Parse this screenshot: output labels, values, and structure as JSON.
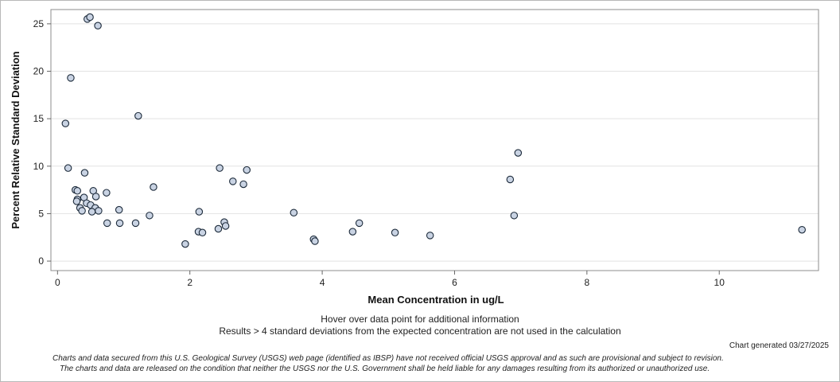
{
  "chart_data": {
    "type": "scatter",
    "xlabel": "Mean Concentration in ug/L",
    "ylabel": "Percent Relative Standard Deviation",
    "xlim": [
      -0.1,
      11.5
    ],
    "ylim": [
      -1,
      26.5
    ],
    "xticks": [
      0,
      2,
      4,
      6,
      8,
      10
    ],
    "yticks": [
      0,
      5,
      10,
      15,
      20,
      25
    ],
    "grid": "horizontal",
    "marker_color": "#c9d3e3",
    "marker_edge_color": "#1c2a3a",
    "points": [
      {
        "x": 0.45,
        "y": 25.5
      },
      {
        "x": 0.49,
        "y": 25.7
      },
      {
        "x": 0.61,
        "y": 24.8
      },
      {
        "x": 0.2,
        "y": 19.3
      },
      {
        "x": 0.12,
        "y": 14.5
      },
      {
        "x": 1.22,
        "y": 15.3
      },
      {
        "x": 0.16,
        "y": 9.8
      },
      {
        "x": 0.41,
        "y": 9.3
      },
      {
        "x": 0.27,
        "y": 7.5
      },
      {
        "x": 0.3,
        "y": 7.4
      },
      {
        "x": 0.54,
        "y": 7.4
      },
      {
        "x": 0.74,
        "y": 7.2
      },
      {
        "x": 0.4,
        "y": 6.7
      },
      {
        "x": 0.58,
        "y": 6.8
      },
      {
        "x": 0.3,
        "y": 6.5
      },
      {
        "x": 0.29,
        "y": 6.3
      },
      {
        "x": 0.44,
        "y": 6.1
      },
      {
        "x": 0.5,
        "y": 5.9
      },
      {
        "x": 0.57,
        "y": 5.6
      },
      {
        "x": 0.34,
        "y": 5.6
      },
      {
        "x": 0.37,
        "y": 5.3
      },
      {
        "x": 0.52,
        "y": 5.2
      },
      {
        "x": 0.62,
        "y": 5.3
      },
      {
        "x": 0.93,
        "y": 5.4
      },
      {
        "x": 0.75,
        "y": 4.0
      },
      {
        "x": 0.94,
        "y": 4.0
      },
      {
        "x": 1.18,
        "y": 4.0
      },
      {
        "x": 1.39,
        "y": 4.8
      },
      {
        "x": 1.45,
        "y": 7.8
      },
      {
        "x": 1.93,
        "y": 1.8
      },
      {
        "x": 2.13,
        "y": 3.1
      },
      {
        "x": 2.14,
        "y": 5.2
      },
      {
        "x": 2.19,
        "y": 3.0
      },
      {
        "x": 2.43,
        "y": 3.4
      },
      {
        "x": 2.45,
        "y": 9.8
      },
      {
        "x": 2.52,
        "y": 4.1
      },
      {
        "x": 2.54,
        "y": 3.7
      },
      {
        "x": 2.65,
        "y": 8.4
      },
      {
        "x": 2.81,
        "y": 8.1
      },
      {
        "x": 2.86,
        "y": 9.6
      },
      {
        "x": 3.57,
        "y": 5.1
      },
      {
        "x": 3.87,
        "y": 2.3
      },
      {
        "x": 3.89,
        "y": 2.1
      },
      {
        "x": 4.46,
        "y": 3.1
      },
      {
        "x": 4.56,
        "y": 4.0
      },
      {
        "x": 5.1,
        "y": 3.0
      },
      {
        "x": 5.63,
        "y": 2.7
      },
      {
        "x": 6.84,
        "y": 8.6
      },
      {
        "x": 6.9,
        "y": 4.8
      },
      {
        "x": 6.96,
        "y": 11.4
      },
      {
        "x": 11.25,
        "y": 3.3
      }
    ]
  },
  "notes": {
    "hover": "Hover over data point for additional information",
    "exclusion": "Results > 4 standard deviations from the expected concentration are not used in the calculation",
    "generated": "Chart generated 03/27/2025",
    "disclaimer_line1": "Charts and data secured from this U.S. Geological Survey (USGS) web page (identified as IBSP) have not received official USGS approval and as such are provisional and subject to revision.",
    "disclaimer_line2": "The charts and data are released on the condition that neither the USGS nor the U.S. Government shall be held liable for any damages resulting from its authorized or unauthorized use."
  }
}
